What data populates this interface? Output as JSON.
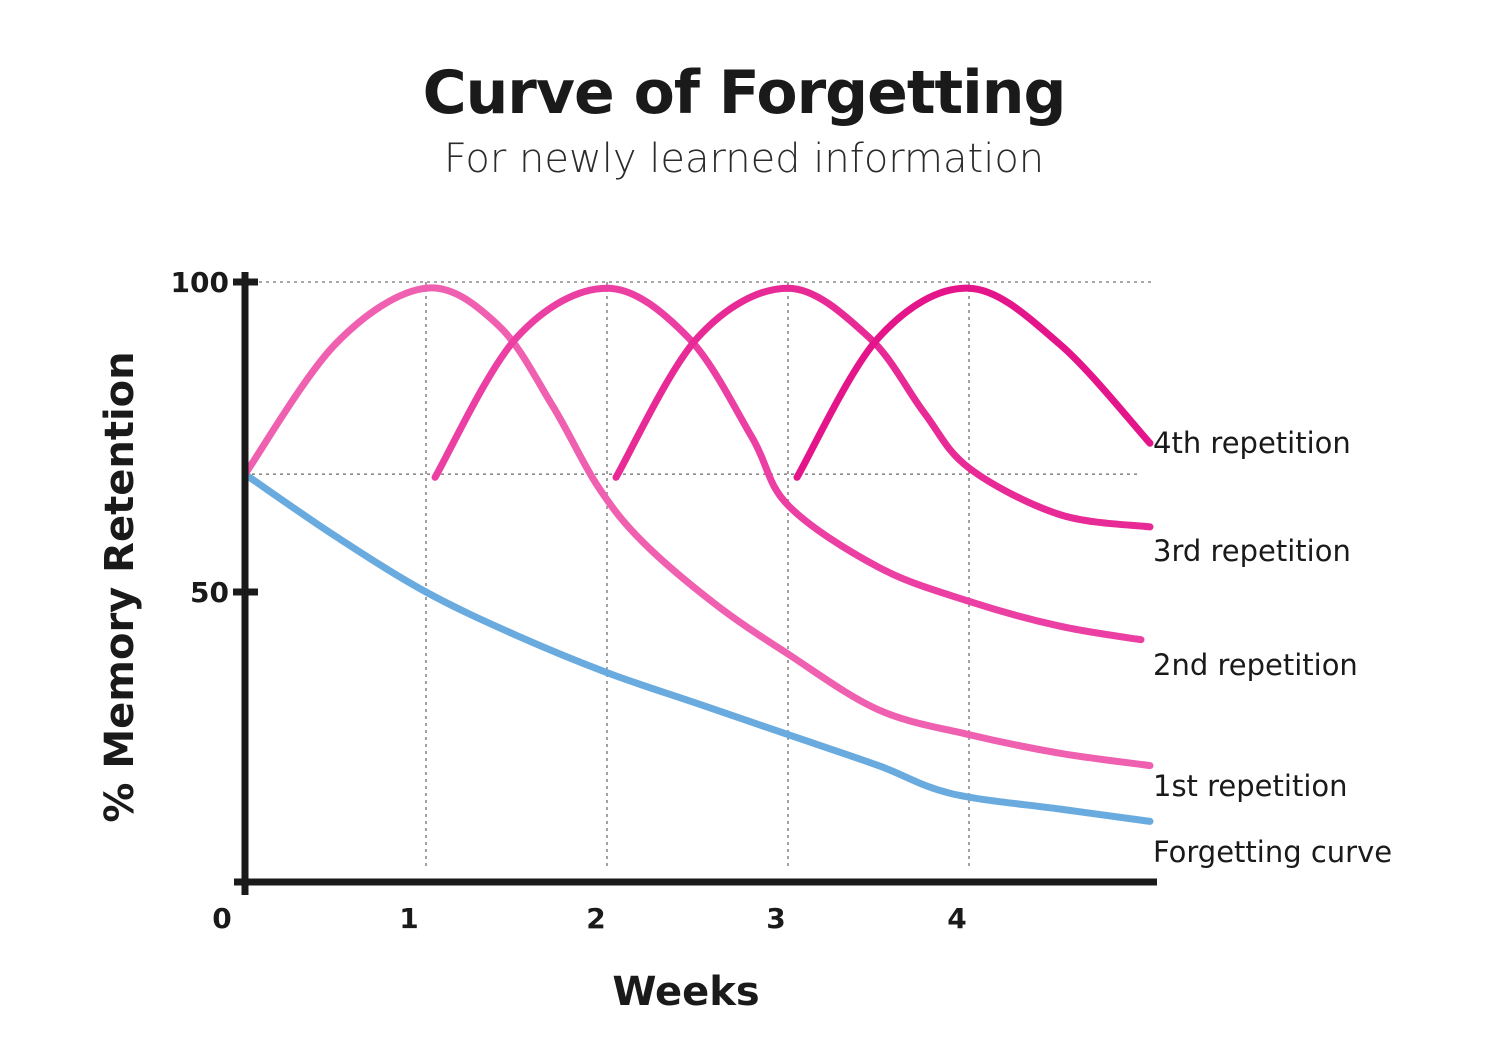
{
  "chart_data": {
    "type": "line",
    "title": "Curve of Forgetting",
    "subtitle": "For newly learned information",
    "xlabel": "Weeks",
    "ylabel": "% Memory Retention",
    "x_ticks": [
      "0",
      "1",
      "2",
      "3",
      "4"
    ],
    "y_ticks": [
      "50",
      "100"
    ],
    "xlim": [
      0,
      5
    ],
    "ylim": [
      3,
      101
    ],
    "grid": "dashed at x = 1, 2, 3, 4 and y = 69, 100",
    "legend": "labels at right end of each line",
    "series": [
      {
        "name": "Forgetting curve",
        "color": "#6aabdf",
        "points": [
          [
            0,
            69
          ],
          [
            0.5,
            59
          ],
          [
            1,
            50
          ],
          [
            1.5,
            43
          ],
          [
            2,
            37
          ],
          [
            2.5,
            32
          ],
          [
            3,
            27
          ],
          [
            3.5,
            22
          ],
          [
            3.9,
            17.5
          ],
          [
            4.5,
            15
          ],
          [
            5,
            13
          ]
        ]
      },
      {
        "name": "1st repetition",
        "color": "#f060b0",
        "points": [
          [
            0,
            69
          ],
          [
            0.5,
            90
          ],
          [
            1,
            99
          ],
          [
            1.4,
            93
          ],
          [
            1.7,
            80
          ],
          [
            1.95,
            67
          ],
          [
            2.2,
            58
          ],
          [
            2.6,
            48
          ],
          [
            3,
            40
          ],
          [
            3.5,
            31
          ],
          [
            4,
            27
          ],
          [
            4.5,
            24
          ],
          [
            5,
            22
          ]
        ]
      },
      {
        "name": "2nd repetition",
        "color": "#eb3fa3",
        "points": [
          [
            1.05,
            68.5
          ],
          [
            1.5,
            91
          ],
          [
            2,
            99
          ],
          [
            2.45,
            91
          ],
          [
            2.8,
            75
          ],
          [
            3,
            64
          ],
          [
            3.5,
            54
          ],
          [
            4,
            48.5
          ],
          [
            4.5,
            44.5
          ],
          [
            4.95,
            42.3
          ]
        ]
      },
      {
        "name": "3rd repetition",
        "color": "#e82a96",
        "points": [
          [
            2.05,
            68.5
          ],
          [
            2.5,
            91
          ],
          [
            3,
            99
          ],
          [
            3.45,
            91
          ],
          [
            3.75,
            79
          ],
          [
            4,
            70
          ],
          [
            4.5,
            62.5
          ],
          [
            5,
            60.5
          ]
        ]
      },
      {
        "name": "4th repetition",
        "color": "#e4158a",
        "points": [
          [
            3.05,
            68.5
          ],
          [
            3.5,
            91
          ],
          [
            4,
            99
          ],
          [
            4.5,
            90
          ],
          [
            5,
            74
          ]
        ]
      }
    ]
  }
}
